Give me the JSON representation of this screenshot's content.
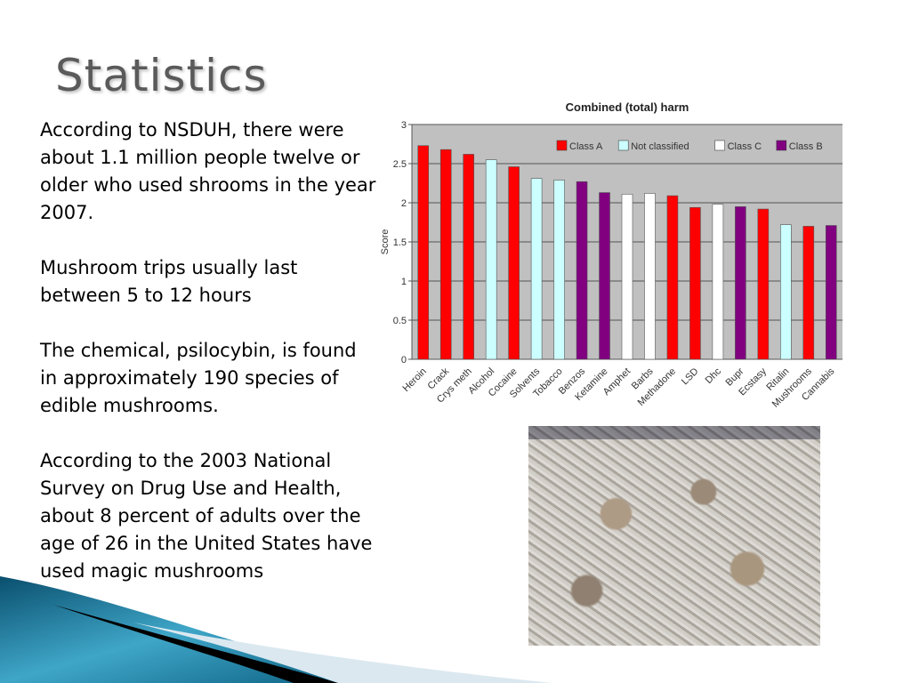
{
  "slide": {
    "title": "Statistics",
    "paragraphs": [
      "According to NSDUH, there were about 1.1 million people twelve or older who used shrooms in the year 2007.",
      "Mushroom trips usually last between 5 to 12 hours",
      "The chemical, psilocybin, is found in approximately 190 species of edible mushrooms.",
      "According to the 2003 National Survey on Drug Use and Health, about 8 percent of adults over the age of 26 in the United States have used magic mushrooms"
    ]
  },
  "chart_data": {
    "type": "bar",
    "title": "Combined (total) harm",
    "xlabel": "",
    "ylabel": "Score",
    "ylim": [
      0,
      3
    ],
    "yticks": [
      "0",
      "0.5",
      "1",
      "1.5",
      "2",
      "2.5",
      "3"
    ],
    "grid": true,
    "legend_position": "top-right",
    "legend": [
      {
        "name": "Class A",
        "color": "#ff0000"
      },
      {
        "name": "Not classified",
        "color": "#ccffff"
      },
      {
        "name": "Class C",
        "color": "#ffffff"
      },
      {
        "name": "Class B",
        "color": "#800080"
      }
    ],
    "categories": [
      "Heroin",
      "Crack",
      "Crys meth",
      "Alcohol",
      "Cocaine",
      "Solvents",
      "Tobacco",
      "Benzos",
      "Ketamine",
      "Amphet",
      "Barbs",
      "Methadone",
      "LSD",
      "Dhc",
      "Bupr",
      "Ecstasy",
      "Ritalin",
      "Mushrooms",
      "Cannabis"
    ],
    "values": [
      2.73,
      2.68,
      2.62,
      2.55,
      2.46,
      2.31,
      2.29,
      2.27,
      2.13,
      2.11,
      2.12,
      2.09,
      1.94,
      1.98,
      1.95,
      1.92,
      1.72,
      1.7,
      1.71
    ],
    "classes": [
      "Class A",
      "Class A",
      "Class A",
      "Not classified",
      "Class A",
      "Not classified",
      "Not classified",
      "Class B",
      "Class B",
      "Class C",
      "Class C",
      "Class A",
      "Class A",
      "Class C",
      "Class B",
      "Class A",
      "Not classified",
      "Class A",
      "Class B"
    ]
  }
}
